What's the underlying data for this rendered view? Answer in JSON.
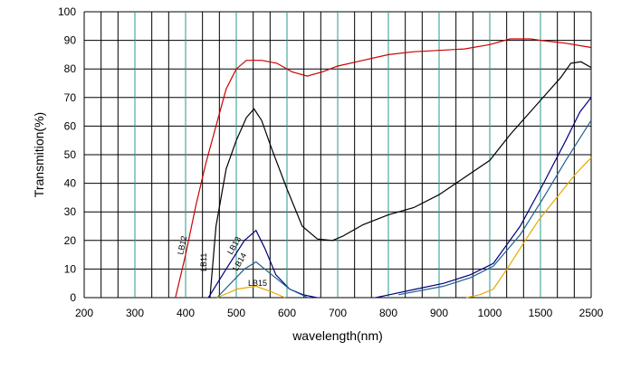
{
  "chart_data": {
    "type": "line",
    "xlabel": "wavelength(nm)",
    "ylabel": "Transmition(%)",
    "xscale": "piecewise",
    "xticks": [
      200,
      300,
      400,
      500,
      600,
      700,
      800,
      900,
      1000,
      1500,
      2500
    ],
    "xlim": [
      200,
      2500
    ],
    "ylim": [
      0,
      100
    ],
    "yticks": [
      0,
      10,
      20,
      30,
      40,
      50,
      60,
      70,
      80,
      90,
      100
    ],
    "grid": true,
    "series": [
      {
        "name": "LB12",
        "color": "#cc0000",
        "x": [
          380,
          400,
          420,
          440,
          460,
          480,
          500,
          520,
          550,
          580,
          610,
          640,
          670,
          700,
          750,
          800,
          850,
          900,
          950,
          1000,
          1200,
          1400,
          1500,
          2000,
          2500
        ],
        "values": [
          0,
          15,
          32,
          47,
          60,
          73,
          80,
          83,
          83,
          82,
          79,
          77.5,
          79,
          81,
          83,
          85,
          86,
          86.5,
          87,
          88.5,
          90.5,
          90.5,
          90,
          89,
          87.5
        ]
      },
      {
        "name": "LB11",
        "color": "#000000",
        "x": [
          448,
          460,
          480,
          500,
          520,
          535,
          550,
          570,
          600,
          630,
          660,
          690,
          710,
          750,
          800,
          850,
          900,
          950,
          1000,
          1200,
          1400,
          1600,
          1900,
          2100,
          2300,
          2500
        ],
        "values": [
          0,
          25,
          45,
          55,
          63,
          66,
          62,
          52,
          38,
          25,
          20.5,
          20,
          21.5,
          25.5,
          29,
          31.5,
          36,
          42,
          48,
          57,
          65,
          71,
          77,
          82,
          82.5,
          80.5
        ]
      },
      {
        "name": "LB13",
        "color": "#000080",
        "x": [
          445,
          480,
          516,
          539,
          557,
          578,
          605,
          632,
          659,
          null,
          775,
          802,
          855,
          909,
          962,
          1036,
          1300,
          1560,
          2000,
          2280,
          2500
        ],
        "values": [
          0,
          10,
          20,
          23.5,
          17,
          8,
          3,
          1,
          0,
          null,
          0,
          1,
          3,
          5,
          8,
          12,
          25,
          40,
          55,
          65,
          70
        ]
      },
      {
        "name": "LB14",
        "color": "#1f5f8f",
        "x": [
          462,
          516,
          539,
          570,
          605,
          641,
          null,
          820,
          909,
          962,
          1036,
          1300,
          1560,
          2000,
          2500
        ],
        "values": [
          0,
          10,
          12.5,
          8,
          3,
          0,
          null,
          1,
          4,
          7,
          11,
          22,
          35,
          48,
          62
        ]
      },
      {
        "name": "LB15",
        "color": "#e8a800",
        "x": [
          462,
          502,
          539,
          570,
          596,
          null,
          954,
          980,
          1036,
          1170,
          1350,
          1480,
          1820,
          2180,
          2500
        ],
        "values": [
          0,
          3,
          4,
          2,
          0,
          null,
          0,
          1,
          3,
          10,
          20,
          27,
          35,
          43,
          49
        ]
      }
    ]
  }
}
